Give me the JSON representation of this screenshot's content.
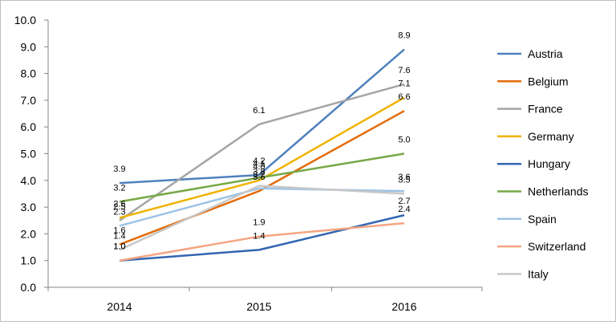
{
  "chart_data": {
    "type": "line",
    "title": "",
    "xlabel": "",
    "ylabel": "",
    "categories": [
      "2014",
      "2015",
      "2016"
    ],
    "ylim": [
      0,
      10
    ],
    "yticks": [
      "0.0",
      "1.0",
      "2.0",
      "3.0",
      "4.0",
      "5.0",
      "6.0",
      "7.0",
      "8.0",
      "9.0",
      "10.0"
    ],
    "grid": false,
    "legend_position": "right",
    "series": [
      {
        "name": "Austria",
        "color": "#4f81bd",
        "values": [
          3.9,
          4.2,
          8.9
        ],
        "labels": [
          "3.9",
          "4.2",
          "8.9"
        ]
      },
      {
        "name": "Belgium",
        "color": "#e46c0a",
        "values": [
          1.6,
          3.6,
          6.6
        ],
        "labels": [
          "1.6",
          "3.6",
          "6.6"
        ]
      },
      {
        "name": "France",
        "color": "#a5a5a5",
        "values": [
          2.5,
          6.1,
          7.6
        ],
        "labels": [
          "2.5",
          "6.1",
          "7.6"
        ]
      },
      {
        "name": "Germany",
        "color": "#f0b300",
        "values": [
          2.6,
          4.0,
          7.1
        ],
        "labels": [
          "2.6",
          "4.0",
          "7.1"
        ]
      },
      {
        "name": "Hungary",
        "color": "#3366b2",
        "values": [
          1.0,
          1.4,
          2.7
        ],
        "labels": [
          "1.0",
          "1.4",
          "2.7"
        ]
      },
      {
        "name": "Netherlands",
        "color": "#77a847",
        "values": [
          3.2,
          4.1,
          5.0
        ],
        "labels": [
          "3.2",
          "4.1",
          "5.0"
        ]
      },
      {
        "name": "Spain",
        "color": "#9dc3e6",
        "values": [
          2.3,
          3.7,
          3.6
        ],
        "labels": [
          "2.3",
          "3.7",
          "3.6"
        ]
      },
      {
        "name": "Switzerland",
        "color": "#f4a582",
        "values": [
          1.0,
          1.9,
          2.4
        ],
        "labels": [
          "1.0",
          "1.9",
          "2.4"
        ]
      },
      {
        "name": "Italy",
        "color": "#c8c8c8",
        "values": [
          1.4,
          3.8,
          3.5
        ],
        "labels": [
          "1.4",
          "3.8",
          "3.5"
        ]
      }
    ]
  }
}
